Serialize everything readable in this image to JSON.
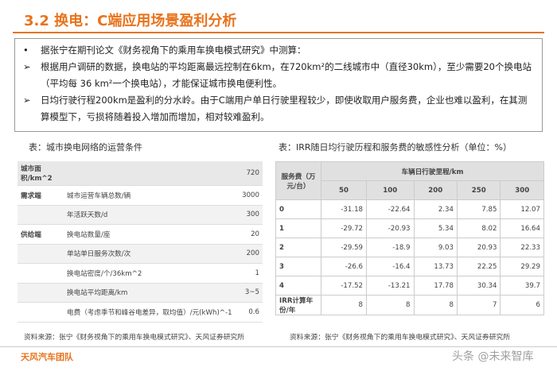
{
  "header": {
    "title": "3.2 换电：C端应用场景盈利分析"
  },
  "bullets": [
    {
      "marker": "•",
      "text": "据张宁在期刊论文《财务视角下的乘用车换电模式研究》中测算："
    },
    {
      "marker": "➢",
      "text": "根据用户调研的数据，换电站的平均距离最远控制在6km，在720km²的二线城市中（直径30km），至少需要20个换电站（平均每 36 km²一个换电站），才能保证城市换电便利性。"
    },
    {
      "marker": "➢",
      "text": "日均行驶行程200km是盈利的分水岭。由于C端用户单日行驶里程较少，即使收取用户服务费，企业也难以盈利，在其测算模型下，亏损将随着投入增加而增加，相对较难盈利。"
    }
  ],
  "left_table": {
    "caption": "表：城市换电网络的运营条件",
    "rows": [
      [
        "城市面积/km^2",
        "",
        "720"
      ],
      [
        "需求端",
        "城市运营车辆总数/辆",
        "3000"
      ],
      [
        "",
        "年活跃天数/d",
        "300"
      ],
      [
        "供给端",
        "换电站数量/座",
        "20"
      ],
      [
        "",
        "单站单日服务次数/次",
        "200"
      ],
      [
        "",
        "换电站密度/个/36km^2",
        "1"
      ],
      [
        "",
        "换电站平均距离/km",
        "3~5"
      ],
      [
        "",
        "电费（考虑季节和峰谷电差异，取均值）/元(kWh)^-1",
        "0.6"
      ]
    ],
    "source": "资料来源：张宁《财务视角下的乘用车换电模式研究》、天风证券研究所"
  },
  "right_table": {
    "caption": "表：IRR随日均行驶历程和服务费的敏感性分析（单位：%）",
    "corner": "服务费（万元/台）",
    "group_header": "车辆日行驶里程/km",
    "columns": [
      "50",
      "100",
      "200",
      "250",
      "300"
    ],
    "rows": [
      [
        "0",
        "-31.18",
        "-22.64",
        "2.34",
        "7.85",
        "12.07"
      ],
      [
        "1",
        "-29.72",
        "-20.93",
        "5.34",
        "8.02",
        "16.64"
      ],
      [
        "2",
        "-29.59",
        "-18.9",
        "9.03",
        "20.93",
        "22.33"
      ],
      [
        "3",
        "-26.6",
        "-16.4",
        "13.73",
        "22.25",
        "29.29"
      ],
      [
        "4",
        "-17.52",
        "-13.21",
        "17.78",
        "30.34",
        "39.7"
      ],
      [
        "IRR计算年份/年",
        "8",
        "8",
        "8",
        "7",
        "6"
      ]
    ],
    "source": "资料来源：张宁《财务视角下的乘用车换电模式研究》、天风证券研究所"
  },
  "footer": {
    "team": "天风汽车团队",
    "watermark": "头条 @未来智库"
  }
}
